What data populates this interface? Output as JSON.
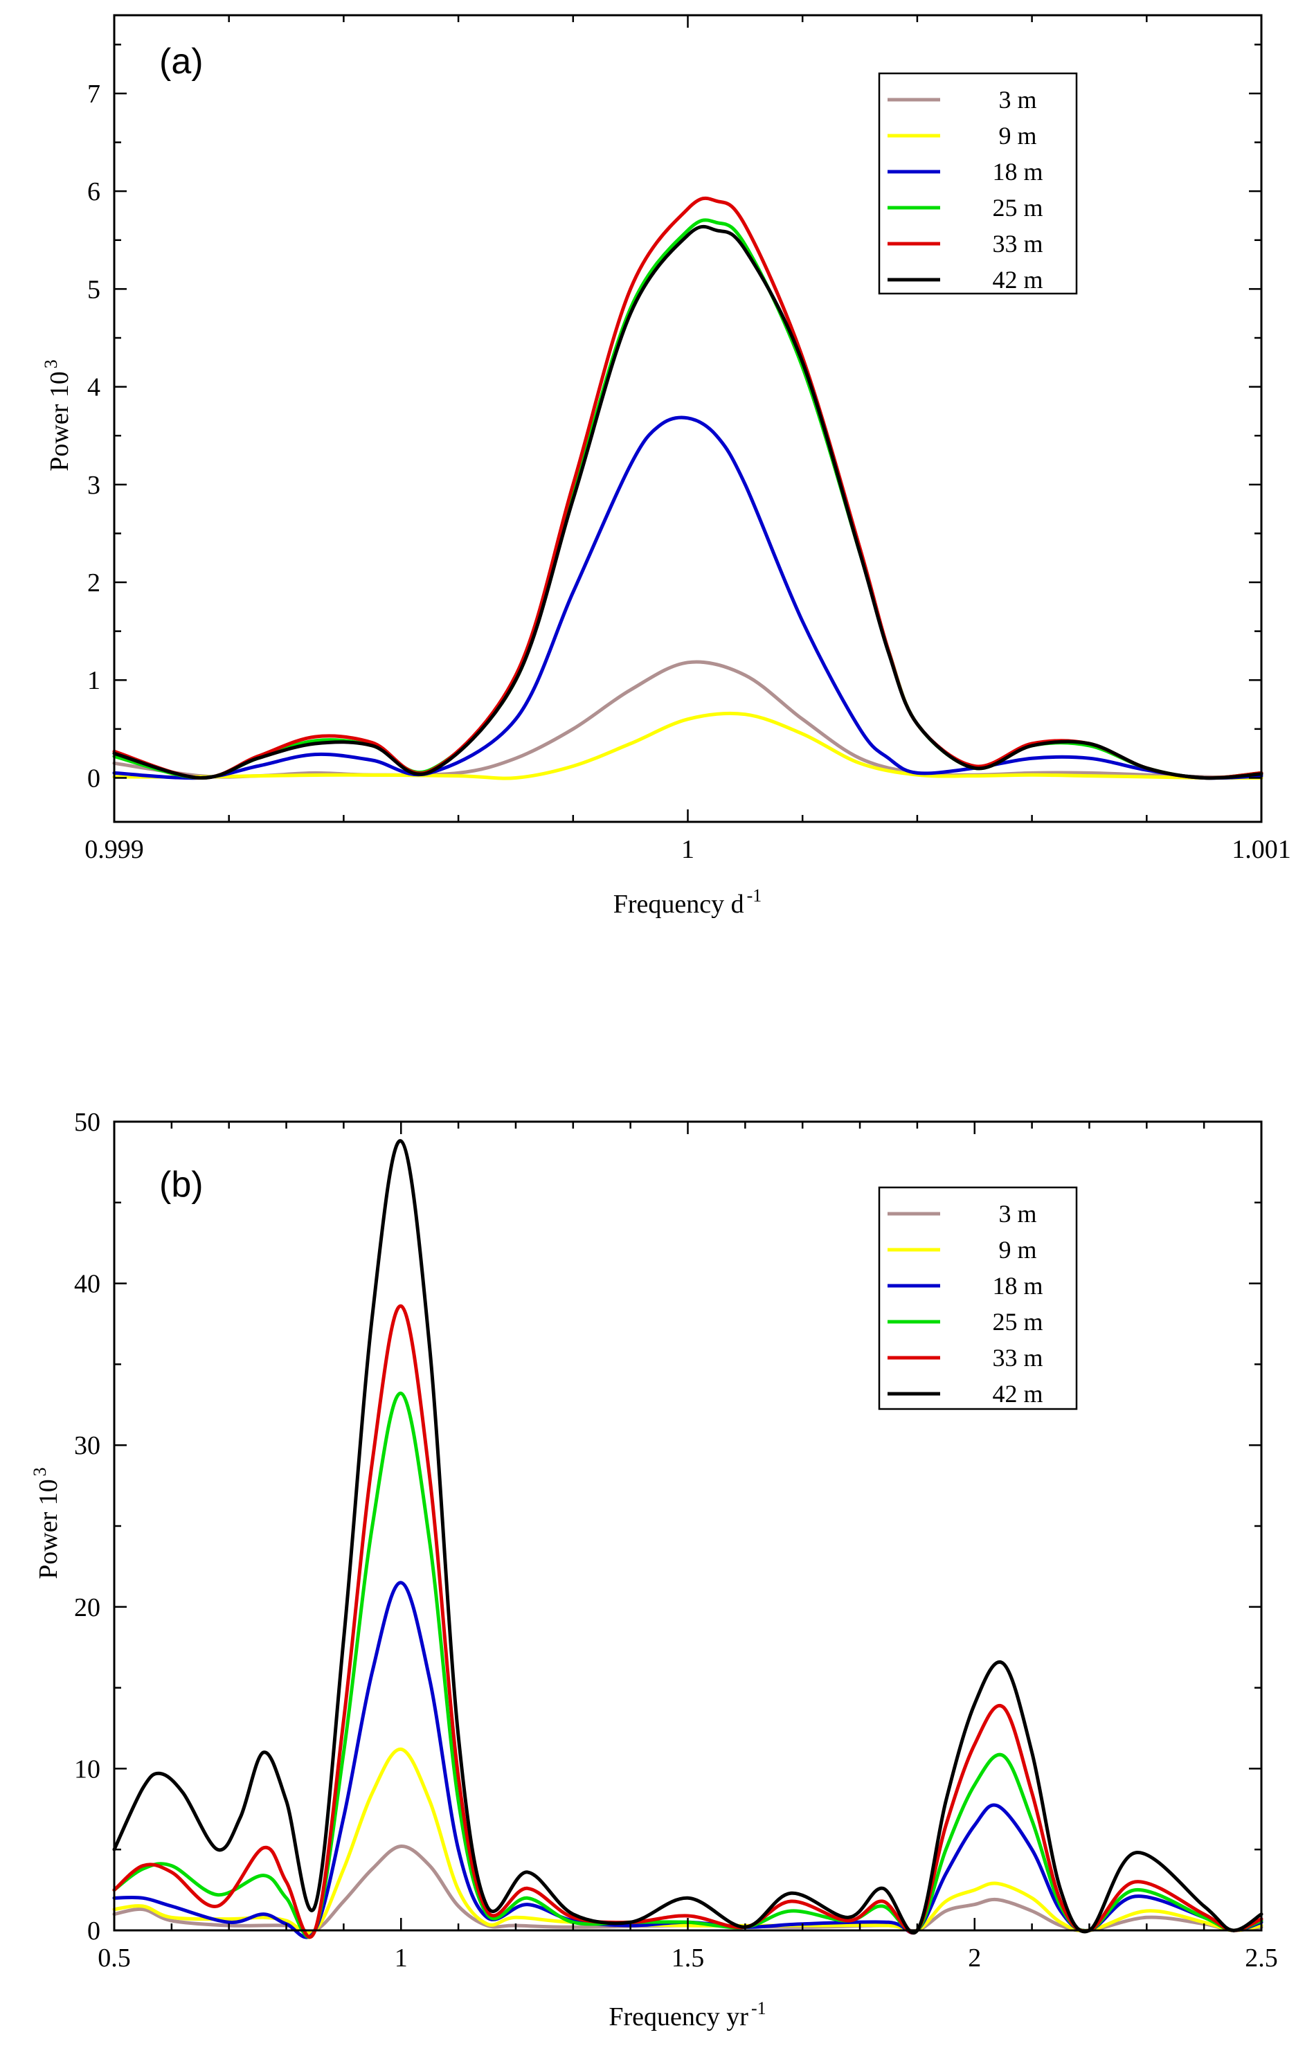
{
  "chart_data": [
    {
      "type": "line",
      "panel_label": "(a)",
      "xlabel": "Frequency d",
      "xlabel_sup": "-1",
      "ylabel": "Power 10",
      "ylabel_sup": "3",
      "xlim": [
        0.999,
        1.001
      ],
      "ylim": [
        -0.45,
        7.8
      ],
      "x_ticks": [
        0.999,
        1,
        1.001
      ],
      "x_tick_labels": [
        "0.999",
        "1",
        "1.001"
      ],
      "x_minor_ticks": [
        0.9992,
        0.9994,
        0.9996,
        0.9998,
        1.0002,
        1.0004,
        1.0006,
        1.0008
      ],
      "y_ticks": [
        0,
        1,
        2,
        3,
        4,
        5,
        6,
        7
      ],
      "y_tick_labels": [
        "0",
        "1",
        "2",
        "3",
        "4",
        "5",
        "6",
        "7"
      ],
      "legend_position": "top-right",
      "grid": false,
      "series": [
        {
          "name": "3 m",
          "color": "#b09090",
          "x": [
            0.999,
            0.99915,
            0.99925,
            0.99935,
            0.99945,
            0.9996,
            0.9997,
            0.9998,
            0.9999,
            1.0,
            1.0001,
            1.0002,
            1.0003,
            1.0004,
            1.0005,
            1.0006,
            1.0007,
            1.0008,
            1.0009,
            1.001
          ],
          "y": [
            0.15,
            0.02,
            0.02,
            0.05,
            0.03,
            0.05,
            0.2,
            0.5,
            0.9,
            1.18,
            1.05,
            0.6,
            0.2,
            0.05,
            0.03,
            0.05,
            0.05,
            0.03,
            0.01,
            0.0
          ]
        },
        {
          "name": "9 m",
          "color": "#ffff00",
          "x": [
            0.999,
            0.99915,
            0.99925,
            0.9994,
            0.9996,
            0.9997,
            0.9998,
            0.9999,
            1.0,
            1.0001,
            1.0002,
            1.0003,
            1.0004,
            1.0005,
            1.0006,
            1.0007,
            1.0008,
            1.0009,
            1.001
          ],
          "y": [
            0.01,
            0.01,
            0.02,
            0.03,
            0.02,
            0.0,
            0.12,
            0.35,
            0.6,
            0.65,
            0.45,
            0.15,
            0.03,
            0.02,
            0.03,
            0.02,
            0.01,
            0.0,
            0.0
          ]
        },
        {
          "name": "18 m",
          "color": "#0000cc",
          "x": [
            0.999,
            0.99915,
            0.99925,
            0.99935,
            0.99945,
            0.99955,
            0.9997,
            0.9998,
            0.9999,
            0.99995,
            1.0,
            1.00005,
            1.0001,
            1.0002,
            1.0003,
            1.00035,
            1.0004,
            1.0005,
            1.0006,
            1.0007,
            1.0008,
            1.0009,
            1.001
          ],
          "y": [
            0.05,
            0.0,
            0.12,
            0.24,
            0.18,
            0.05,
            0.6,
            1.9,
            3.2,
            3.6,
            3.68,
            3.5,
            3.0,
            1.6,
            0.5,
            0.2,
            0.05,
            0.1,
            0.2,
            0.2,
            0.08,
            0.0,
            0.02
          ]
        },
        {
          "name": "25 m",
          "color": "#00dd00",
          "x": [
            0.999,
            0.99915,
            0.99925,
            0.99935,
            0.99945,
            0.99955,
            0.9997,
            0.9998,
            0.9999,
            1.0,
            1.00005,
            1.0001,
            1.0002,
            1.0003,
            1.00035,
            1.0004,
            1.0005,
            1.0006,
            1.0007,
            1.0008,
            1.0009,
            1.001
          ],
          "y": [
            0.22,
            0.0,
            0.2,
            0.38,
            0.33,
            0.08,
            1.0,
            2.9,
            4.8,
            5.6,
            5.68,
            5.45,
            4.2,
            2.3,
            1.3,
            0.55,
            0.1,
            0.33,
            0.33,
            0.1,
            0.0,
            0.05
          ]
        },
        {
          "name": "33 m",
          "color": "#dd0000",
          "x": [
            0.999,
            0.99915,
            0.99925,
            0.99935,
            0.99945,
            0.99955,
            0.9997,
            0.9998,
            0.9999,
            1.0,
            1.00005,
            1.0001,
            1.0002,
            1.0003,
            1.00035,
            1.0004,
            1.0005,
            1.0006,
            1.0007,
            1.0008,
            1.0009,
            1.001
          ],
          "y": [
            0.27,
            0.0,
            0.22,
            0.42,
            0.36,
            0.07,
            1.05,
            3.0,
            5.0,
            5.82,
            5.9,
            5.65,
            4.3,
            2.35,
            1.3,
            0.55,
            0.12,
            0.35,
            0.35,
            0.1,
            0.0,
            0.05
          ]
        },
        {
          "name": "42 m",
          "color": "#000000",
          "x": [
            0.999,
            0.99915,
            0.99925,
            0.99935,
            0.99945,
            0.99955,
            0.9997,
            0.9998,
            0.9999,
            1.0,
            1.00005,
            1.0001,
            1.0002,
            1.0003,
            1.00035,
            1.0004,
            1.0005,
            1.0006,
            1.0007,
            1.0008,
            1.0009,
            1.001
          ],
          "y": [
            0.25,
            0.0,
            0.2,
            0.35,
            0.33,
            0.06,
            1.0,
            2.85,
            4.75,
            5.55,
            5.6,
            5.4,
            4.25,
            2.3,
            1.28,
            0.55,
            0.1,
            0.33,
            0.35,
            0.1,
            0.0,
            0.04
          ]
        }
      ]
    },
    {
      "type": "line",
      "panel_label": "(b)",
      "xlabel": "Frequency yr",
      "xlabel_sup": "-1",
      "ylabel": "Power 10",
      "ylabel_sup": "3",
      "xlim": [
        0.5,
        2.5
      ],
      "ylim": [
        0,
        50
      ],
      "x_ticks": [
        0.5,
        1,
        1.5,
        2,
        2.5
      ],
      "x_tick_labels": [
        "0.5",
        "1",
        "1.5",
        "2",
        "2.5"
      ],
      "x_minor_ticks": [
        0.6,
        0.7,
        0.8,
        0.9,
        1.1,
        1.2,
        1.3,
        1.4,
        1.6,
        1.7,
        1.8,
        1.9,
        2.1,
        2.2,
        2.3,
        2.4
      ],
      "y_ticks": [
        0,
        10,
        20,
        30,
        40,
        50
      ],
      "y_tick_labels": [
        "0",
        "10",
        "20",
        "30",
        "40",
        "50"
      ],
      "legend_position": "top-right",
      "grid": false,
      "series": [
        {
          "name": "3 m",
          "color": "#b09090",
          "x": [
            0.5,
            0.55,
            0.6,
            0.7,
            0.8,
            0.85,
            0.9,
            0.95,
            1.0,
            1.05,
            1.1,
            1.15,
            1.2,
            1.3,
            1.5,
            1.7,
            1.85,
            1.9,
            1.95,
            2.0,
            2.04,
            2.1,
            2.15,
            2.2,
            2.3,
            2.4,
            2.45,
            2.5
          ],
          "y": [
            1.0,
            1.3,
            0.6,
            0.3,
            0.3,
            0.0,
            1.8,
            3.8,
            5.2,
            4.0,
            1.5,
            0.3,
            0.3,
            0.2,
            0.3,
            0.2,
            0.3,
            0.0,
            1.2,
            1.6,
            1.9,
            1.2,
            0.3,
            0.0,
            0.8,
            0.4,
            0.0,
            0.2
          ]
        },
        {
          "name": "9 m",
          "color": "#ffff00",
          "x": [
            0.5,
            0.55,
            0.6,
            0.7,
            0.76,
            0.8,
            0.85,
            0.9,
            0.95,
            1.0,
            1.05,
            1.1,
            1.15,
            1.2,
            1.3,
            1.5,
            1.7,
            1.85,
            1.9,
            1.95,
            2.0,
            2.04,
            2.1,
            2.15,
            2.2,
            2.3,
            2.4,
            2.45,
            2.5
          ],
          "y": [
            1.3,
            1.5,
            0.8,
            0.7,
            0.8,
            0.6,
            0.0,
            3.8,
            8.5,
            11.2,
            8.0,
            2.5,
            0.4,
            0.8,
            0.5,
            0.3,
            0.3,
            0.3,
            0.0,
            1.8,
            2.5,
            2.9,
            2.0,
            0.5,
            0.0,
            1.2,
            0.5,
            0.0,
            0.3
          ]
        },
        {
          "name": "18 m",
          "color": "#0000cc",
          "x": [
            0.5,
            0.55,
            0.6,
            0.7,
            0.76,
            0.8,
            0.85,
            0.9,
            0.95,
            1.0,
            1.05,
            1.1,
            1.15,
            1.22,
            1.3,
            1.4,
            1.5,
            1.6,
            1.7,
            1.85,
            1.9,
            1.95,
            2.0,
            2.04,
            2.1,
            2.15,
            2.2,
            2.28,
            2.4,
            2.45,
            2.5
          ],
          "y": [
            2.0,
            2.0,
            1.5,
            0.5,
            1.0,
            0.4,
            0.0,
            7.0,
            16.0,
            21.5,
            15.5,
            5.0,
            0.8,
            1.6,
            0.6,
            0.3,
            0.5,
            0.2,
            0.4,
            0.5,
            0.0,
            3.5,
            6.5,
            7.7,
            5.0,
            1.2,
            0.0,
            2.1,
            0.8,
            0.0,
            0.5
          ]
        },
        {
          "name": "25 m",
          "color": "#00dd00",
          "x": [
            0.5,
            0.55,
            0.6,
            0.68,
            0.76,
            0.8,
            0.85,
            0.9,
            0.95,
            1.0,
            1.05,
            1.1,
            1.15,
            1.22,
            1.3,
            1.4,
            1.5,
            1.6,
            1.68,
            1.78,
            1.84,
            1.9,
            1.95,
            2.0,
            2.05,
            2.1,
            2.15,
            2.2,
            2.28,
            2.4,
            2.45,
            2.5
          ],
          "y": [
            2.5,
            3.8,
            4.0,
            2.2,
            3.4,
            2.0,
            0.0,
            11.0,
            25.0,
            33.2,
            24.0,
            8.0,
            1.0,
            2.0,
            0.5,
            0.5,
            0.5,
            0.2,
            1.2,
            0.6,
            1.5,
            0.0,
            5.0,
            9.0,
            10.8,
            6.8,
            1.5,
            0.0,
            2.5,
            0.8,
            0.0,
            0.6
          ]
        },
        {
          "name": "33 m",
          "color": "#dd0000",
          "x": [
            0.5,
            0.55,
            0.6,
            0.68,
            0.76,
            0.8,
            0.85,
            0.9,
            0.95,
            1.0,
            1.05,
            1.1,
            1.15,
            1.22,
            1.3,
            1.4,
            1.5,
            1.6,
            1.68,
            1.78,
            1.84,
            1.9,
            1.95,
            2.0,
            2.05,
            2.1,
            2.15,
            2.2,
            2.28,
            2.4,
            2.45,
            2.5
          ],
          "y": [
            2.5,
            4.0,
            3.6,
            1.5,
            5.1,
            3.0,
            0.0,
            13.0,
            29.0,
            38.6,
            28.0,
            9.5,
            1.2,
            2.6,
            0.8,
            0.5,
            0.9,
            0.2,
            1.8,
            0.6,
            1.8,
            0.0,
            6.5,
            11.5,
            13.8,
            8.5,
            1.8,
            0.0,
            3.0,
            1.0,
            0.0,
            0.7
          ]
        },
        {
          "name": "42 m",
          "color": "#000000",
          "x": [
            0.5,
            0.55,
            0.58,
            0.62,
            0.68,
            0.72,
            0.76,
            0.8,
            0.85,
            0.9,
            0.95,
            1.0,
            1.05,
            1.1,
            1.15,
            1.22,
            1.3,
            1.4,
            1.5,
            1.6,
            1.68,
            1.78,
            1.84,
            1.9,
            1.95,
            2.0,
            2.05,
            2.1,
            2.15,
            2.2,
            2.28,
            2.4,
            2.45,
            2.5
          ],
          "y": [
            5.0,
            8.8,
            9.7,
            8.5,
            5.0,
            7.0,
            11.0,
            8.0,
            1.5,
            18.0,
            38.0,
            48.8,
            36.0,
            12.0,
            1.5,
            3.6,
            1.0,
            0.5,
            2.0,
            0.2,
            2.3,
            0.8,
            2.6,
            0.0,
            8.0,
            14.0,
            16.5,
            11.0,
            2.5,
            0.0,
            4.8,
            1.5,
            0.0,
            1.0
          ]
        }
      ]
    }
  ]
}
